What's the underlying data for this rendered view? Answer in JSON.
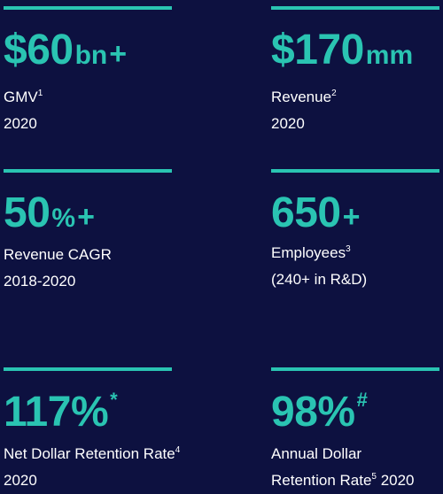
{
  "stats": [
    {
      "number": "$60",
      "unit": "bn",
      "suffix": "+",
      "label": "GMV",
      "footnote": "1",
      "sublabel": "2020"
    },
    {
      "number": "$170",
      "unit": "mm",
      "suffix": "",
      "label": "Revenue",
      "footnote": "2",
      "sublabel": "2020"
    },
    {
      "number": "50",
      "unit": "%",
      "suffix": "+",
      "label": "Revenue CAGR",
      "footnote": "",
      "sublabel": "2018-2020"
    },
    {
      "number": "650",
      "unit": "",
      "suffix": "+",
      "label": "Employees",
      "footnote": "3",
      "sublabel": "(240+ in R&D)"
    },
    {
      "number": "117%",
      "unit": "",
      "suffix": "",
      "mark": "*",
      "label": "Net Dollar Retention Rate",
      "footnote": "4",
      "sublabel": "2020"
    },
    {
      "number": "98%",
      "unit": "",
      "suffix": "",
      "mark": "#",
      "label": "Annual Dollar",
      "footnote": "",
      "sublabel": "Retention Rate",
      "sublabel_footnote": "5",
      "sublabel_tail": " 2020"
    }
  ],
  "colors": {
    "background": "#0d1140",
    "accent": "#2ac4b2",
    "text": "#ffffff"
  }
}
